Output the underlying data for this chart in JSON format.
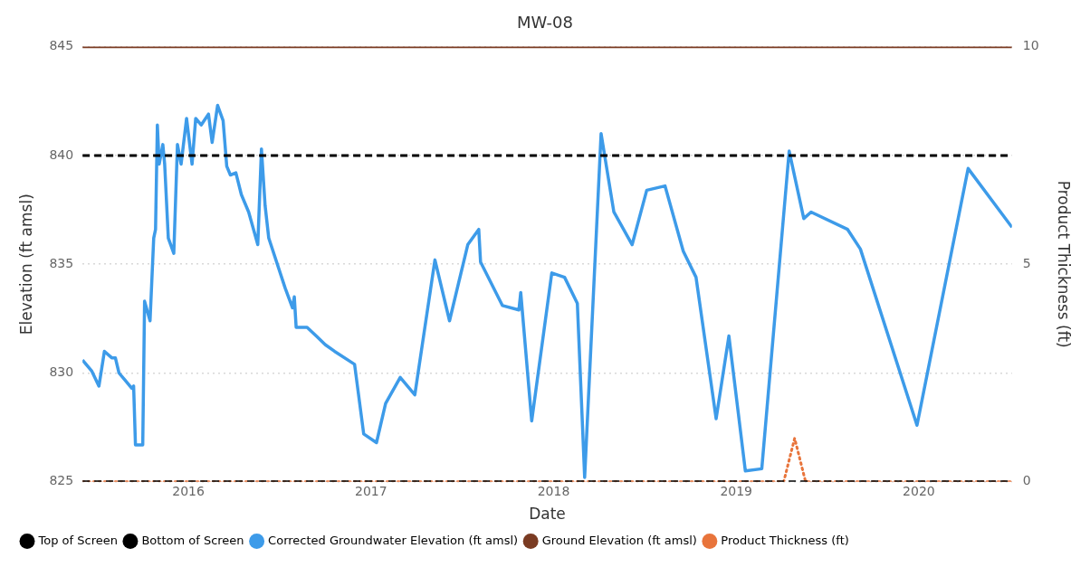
{
  "chart_data": {
    "type": "line",
    "title": "MW-08",
    "xlabel": "Date",
    "ylabel": "Elevation (ft amsl)",
    "y2label": "Product Thickness (ft)",
    "xlim": [
      2015.42,
      2020.51
    ],
    "xticks": [
      2016,
      2017,
      2018,
      2019,
      2020
    ],
    "ylim": [
      825,
      845
    ],
    "yticks": [
      825,
      830,
      835,
      840,
      845
    ],
    "y2lim": [
      0,
      10
    ],
    "y2ticks": [
      0,
      5,
      10
    ],
    "grid": "y",
    "legend": "bottom",
    "marker": "none",
    "series": [
      {
        "name": "Top of Screen",
        "color": "#000000",
        "line_style": "dashed",
        "x": [
          2015.42,
          2020.51
        ],
        "values": [
          840,
          840
        ]
      },
      {
        "name": "Bottom of Screen",
        "color": "#000000",
        "line_style": "dashed",
        "x": [
          2015.42,
          2020.51
        ],
        "values": [
          825,
          825
        ]
      },
      {
        "name": "Corrected Groundwater Elevation (ft amsl)",
        "color": "#3d9be9",
        "line_style": "solid",
        "x": [
          2015.42,
          2015.47,
          2015.51,
          2015.54,
          2015.58,
          2015.6,
          2015.62,
          2015.65,
          2015.69,
          2015.7,
          2015.71,
          2015.75,
          2015.76,
          2015.79,
          2015.81,
          2015.82,
          2015.83,
          2015.84,
          2015.86,
          2015.87,
          2015.89,
          2015.92,
          2015.94,
          2015.96,
          2015.99,
          2016.02,
          2016.04,
          2016.07,
          2016.11,
          2016.13,
          2016.16,
          2016.19,
          2016.21,
          2016.23,
          2016.26,
          2016.29,
          2016.33,
          2016.38,
          2016.4,
          2016.42,
          2016.44,
          2016.53,
          2016.57,
          2016.58,
          2016.59,
          2016.65,
          2016.7,
          2016.75,
          2016.8,
          2016.91,
          2016.96,
          2017.03,
          2017.08,
          2017.16,
          2017.24,
          2017.35,
          2017.43,
          2017.53,
          2017.59,
          2017.6,
          2017.72,
          2017.81,
          2017.82,
          2017.88,
          2017.99,
          2018.06,
          2018.13,
          2018.17,
          2018.26,
          2018.33,
          2018.43,
          2018.51,
          2018.61,
          2018.71,
          2018.78,
          2018.89,
          2018.96,
          2019.05,
          2019.14,
          2019.29,
          2019.37,
          2019.41,
          2019.61,
          2019.68,
          2019.99,
          2020.27,
          2020.51
        ],
        "values": [
          830.6,
          830.1,
          829.4,
          831,
          830.7,
          830.7,
          830,
          829.7,
          829.3,
          829.4,
          826.7,
          826.7,
          833.3,
          832.4,
          836.2,
          836.6,
          841.4,
          839.6,
          840.5,
          839.6,
          836.2,
          835.5,
          840.5,
          839.6,
          841.7,
          839.6,
          841.7,
          841.4,
          841.9,
          840.6,
          842.3,
          841.6,
          839.5,
          839.1,
          839.2,
          838.2,
          837.4,
          835.9,
          840.3,
          837.7,
          836.2,
          833.9,
          833,
          833.5,
          832.1,
          832.1,
          831.7,
          831.3,
          831,
          830.4,
          827.2,
          826.8,
          828.6,
          829.8,
          829,
          835.2,
          832.4,
          835.9,
          836.6,
          835.1,
          833.1,
          832.9,
          833.7,
          827.8,
          834.6,
          834.4,
          833.2,
          825.2,
          841,
          837.4,
          835.9,
          838.4,
          838.6,
          835.6,
          834.4,
          827.9,
          831.7,
          825.5,
          825.6,
          840.2,
          837.1,
          837.4,
          836.6,
          835.7,
          827.6,
          839.4,
          836.7
        ]
      },
      {
        "name": "Ground Elevation (ft amsl)",
        "color": "#7a3b22",
        "line_style": "solid",
        "x": [
          2015.42,
          2020.51
        ],
        "values": [
          845,
          845
        ]
      },
      {
        "name": "Product Thickness (ft)",
        "color": "#e8743b",
        "line_style": "dotted",
        "axis": "y2",
        "x": [
          2015.42,
          2019.26,
          2019.32,
          2019.38,
          2020.51
        ],
        "values": [
          0,
          0,
          1,
          0,
          0
        ]
      }
    ]
  }
}
